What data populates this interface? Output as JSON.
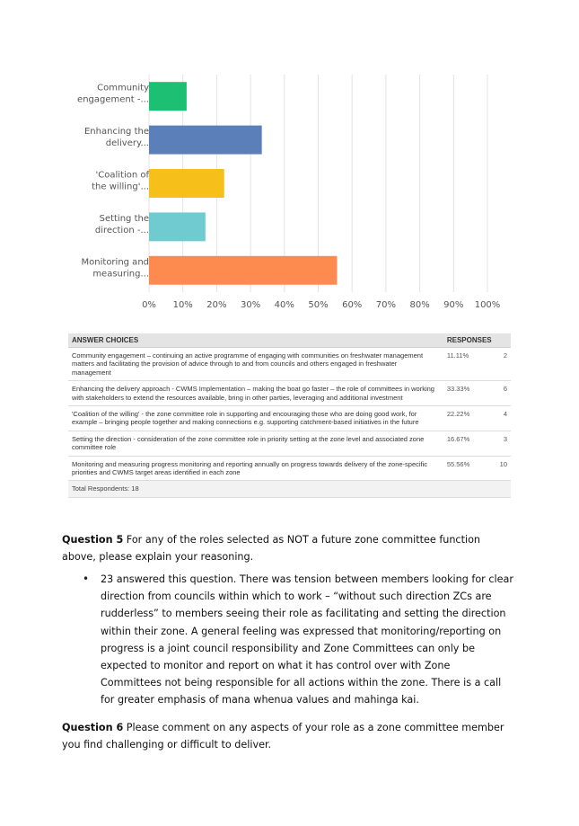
{
  "chart_data": {
    "type": "bar",
    "orientation": "horizontal",
    "categories": [
      [
        "Community",
        "engagement -..."
      ],
      [
        "Enhancing the",
        "delivery..."
      ],
      [
        "'Coalition of",
        "the willing'..."
      ],
      [
        "Setting the",
        "direction -..."
      ],
      [
        "Monitoring and",
        "measuring..."
      ]
    ],
    "values": [
      11.11,
      33.33,
      22.22,
      16.67,
      55.56
    ],
    "colors": [
      "#1dbf73",
      "#5b7fb8",
      "#f7bf1a",
      "#6fcbd0",
      "#fd8a4f"
    ],
    "xlim": [
      0,
      100
    ],
    "xticks": [
      "0%",
      "10%",
      "20%",
      "30%",
      "40%",
      "50%",
      "60%",
      "70%",
      "80%",
      "90%",
      "100%"
    ],
    "grid": true
  },
  "table": {
    "headers": {
      "choice": "ANSWER CHOICES",
      "responses": "RESPONSES"
    },
    "rows": [
      {
        "choice": "Community engagement – continuing an active programme of engaging with communities on freshwater management matters and facilitating the provision of advice through to and from councils and others engaged in freshwater management",
        "pct": "11.11%",
        "count": "2"
      },
      {
        "choice": "Enhancing the delivery approach - CWMS Implementation – making the boat go faster – the role of committees in working with stakeholders to extend the resources available, bring in other parties, leveraging and additional investment",
        "pct": "33.33%",
        "count": "6"
      },
      {
        "choice": "'Coalition of the willing' - the zone committee role in supporting and encouraging those who are doing good work, for example – bringing people together and making connections e.g. supporting catchment-based initiatives in the future",
        "pct": "22.22%",
        "count": "4"
      },
      {
        "choice": "Setting the direction - consideration of the zone committee role in priority setting at the zone level and associated zone committee role",
        "pct": "16.67%",
        "count": "3"
      },
      {
        "choice": "Monitoring and measuring progress monitoring and reporting annually on progress towards delivery of the zone-specific priorities and CWMS target areas identified in each zone",
        "pct": "55.56%",
        "count": "10"
      }
    ],
    "total": "Total Respondents: 18"
  },
  "q5": {
    "label": "Question 5",
    "text": " For any of the roles selected as NOT a future zone committee function above, please explain your reasoning."
  },
  "q5_bullet": "23 answered this question. There was tension between members looking for clear direction from councils within which to work – “without such direction ZCs are rudderless” to members seeing their role as facilitating and setting the direction within their zone. A general feeling was expressed that monitoring/reporting on progress is a joint council responsibility and Zone Committees can only be expected to monitor and report on what it has control over with Zone Committees not being responsible for all actions within the zone. There is a call for greater emphasis of mana whenua values and mahinga kai.",
  "q6": {
    "label": "Question 6",
    "text": " Please comment on any aspects of your role as a zone committee member you find challenging or difficult to deliver."
  }
}
